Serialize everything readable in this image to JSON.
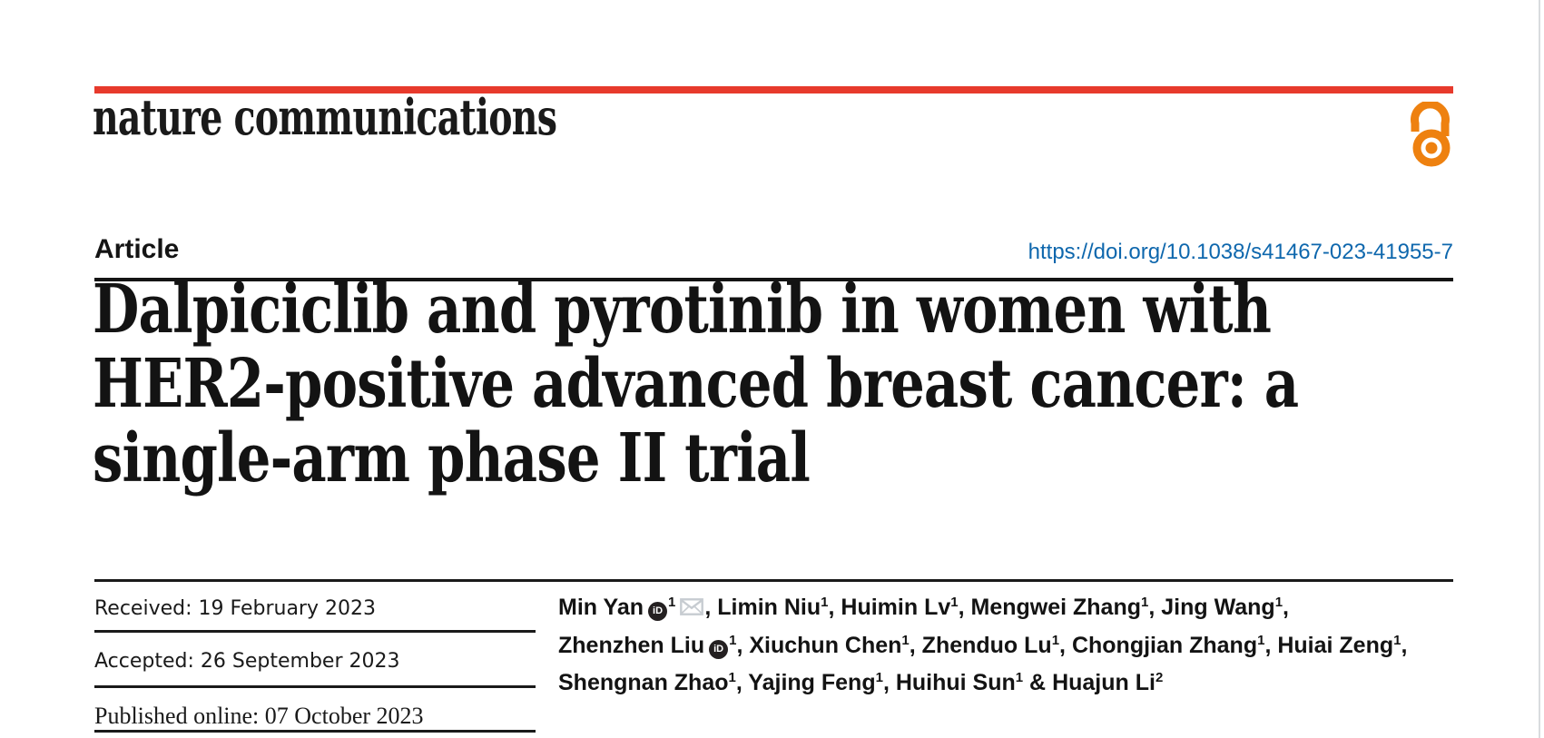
{
  "page": {
    "background": "#ffffff",
    "right_border_color": "#d9dcde"
  },
  "masthead": {
    "journal_name": "nature communications",
    "rule_color": "#e73a2c",
    "open_access_icon": "open-padlock",
    "open_access_color": "#ee8110"
  },
  "article_header": {
    "article_type_label": "Article",
    "doi_link": "https://doi.org/10.1038/s41467-023-41955-7",
    "doi_color": "#0e67ad"
  },
  "title": {
    "lines": [
      "Dalpiciclib and pyrotinib in women with",
      "HER2-positive advanced breast cancer: a",
      "single-arm phase II trial"
    ]
  },
  "history": {
    "rows": [
      {
        "label": "Received:",
        "value": "19 February 2023"
      },
      {
        "label": "Accepted:",
        "value": "26 September 2023"
      },
      {
        "label": "Published online:",
        "value": "07 October 2023"
      }
    ]
  },
  "authors": {
    "orcid_glyph": "iD",
    "orcid_color": "#242021",
    "envelope_color": "#c7ccd1",
    "lines": [
      [
        {
          "name": "Min Yan",
          "orcid": true,
          "sup": "1",
          "envelope": true,
          "sep": ", "
        },
        {
          "name": "Limin Niu",
          "sup": "1",
          "sep": ", "
        },
        {
          "name": "Huimin Lv",
          "sup": "1",
          "sep": ", "
        },
        {
          "name": "Mengwei Zhang",
          "sup": "1",
          "sep": ", "
        },
        {
          "name": "Jing Wang",
          "sup": "1",
          "sep": ","
        }
      ],
      [
        {
          "name": "Zhenzhen Liu",
          "orcid": true,
          "sup": "1",
          "sep": ", "
        },
        {
          "name": "Xiuchun Chen",
          "sup": "1",
          "sep": ", "
        },
        {
          "name": "Zhenduo Lu",
          "sup": "1",
          "sep": ", "
        },
        {
          "name": "Chongjian Zhang",
          "sup": "1",
          "sep": ", "
        },
        {
          "name": "Huiai Zeng",
          "sup": "1",
          "sep": ","
        }
      ],
      [
        {
          "name": "Shengnan Zhao",
          "sup": "1",
          "sep": ", "
        },
        {
          "name": "Yajing Feng",
          "sup": "1",
          "sep": ", "
        },
        {
          "name": "Huihui Sun",
          "sup": "1",
          "sep": " & "
        },
        {
          "name": "Huajun Li",
          "sup": "2",
          "sep": ""
        }
      ]
    ]
  }
}
